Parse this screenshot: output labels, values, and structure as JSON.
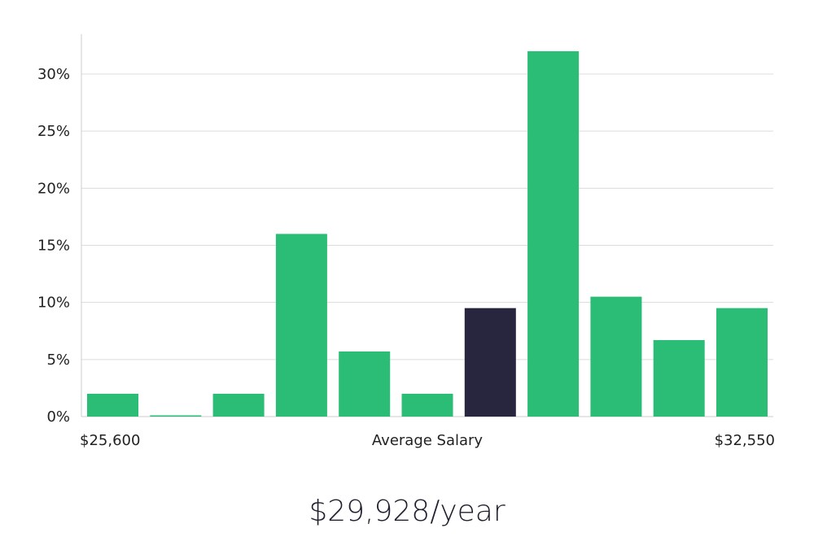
{
  "chart_data": {
    "type": "bar",
    "title": "",
    "xlabel": "Average Salary",
    "ylabel": "",
    "x_range_labels": {
      "min": "$25,600",
      "max": "$32,550"
    },
    "values": [
      2,
      0.1,
      2,
      16,
      5.7,
      2,
      9.5,
      32,
      10.5,
      6.7,
      9.5
    ],
    "highlight_index": 6,
    "ylim": [
      0,
      32
    ],
    "yticks": [
      "0%",
      "5%",
      "10%",
      "15%",
      "20%",
      "25%",
      "30%"
    ],
    "ytick_values": [
      0,
      5,
      10,
      15,
      20,
      25,
      30
    ],
    "grid": true
  },
  "summary": {
    "salary_per_year": "$29,928/year"
  },
  "colors": {
    "bar": "#2bbd76",
    "highlight": "#28253f",
    "grid": "#dcdcdc",
    "axis": "#cccccc"
  }
}
